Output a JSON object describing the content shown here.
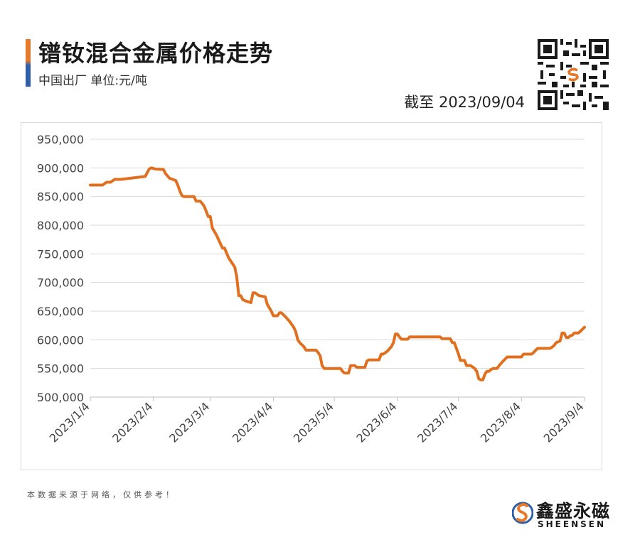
{
  "header": {
    "title": "镨钕混合金属价格走势",
    "subtitle": "中国出厂  单位:元/吨",
    "as_of": "截至 2023/09/04"
  },
  "footer": {
    "source_note": "本数据来源于网络，仅供参考！",
    "brand_cn": "鑫盛永磁",
    "brand_en": "SHEENSEN"
  },
  "colors": {
    "line": "#e07020",
    "grid": "#d9d9d9",
    "accent_orange": "#e8782a",
    "accent_blue": "#2f5fa8"
  },
  "icons": {
    "qr": "qr-code-icon",
    "logo": "sheensen-logo-icon"
  },
  "chart_data": {
    "type": "line",
    "title": "镨钕混合金属价格走势",
    "xlabel": "",
    "ylabel": "",
    "ylim": [
      500000,
      950000
    ],
    "yticks": [
      "500,000",
      "550,000",
      "600,000",
      "650,000",
      "700,000",
      "750,000",
      "800,000",
      "850,000",
      "900,000",
      "950,000"
    ],
    "xticks": [
      "2023/1/4",
      "2023/2/4",
      "2023/3/4",
      "2023/4/4",
      "2023/5/4",
      "2023/6/4",
      "2023/7/4",
      "2023/8/4",
      "2023/9/4"
    ],
    "grid": "horizontal",
    "legend": "none",
    "series": [
      {
        "points": [
          [
            "2023-01-04",
            870000
          ],
          [
            "2023-01-10",
            870000
          ],
          [
            "2023-01-12",
            875000
          ],
          [
            "2023-01-13",
            875000
          ],
          [
            "2023-01-14",
            875000
          ],
          [
            "2023-01-16",
            880000
          ],
          [
            "2023-01-19",
            880000
          ],
          [
            "2023-01-31",
            885000
          ],
          [
            "2023-02-01",
            892000
          ],
          [
            "2023-02-02",
            898000
          ],
          [
            "2023-02-03",
            900000
          ],
          [
            "2023-02-05",
            898000
          ],
          [
            "2023-02-09",
            897000
          ],
          [
            "2023-02-10",
            890000
          ],
          [
            "2023-02-12",
            882000
          ],
          [
            "2023-02-15",
            878000
          ],
          [
            "2023-02-16",
            870000
          ],
          [
            "2023-02-17",
            860000
          ],
          [
            "2023-02-18",
            852000
          ],
          [
            "2023-02-19",
            850000
          ],
          [
            "2023-02-24",
            850000
          ],
          [
            "2023-02-25",
            842000
          ],
          [
            "2023-02-27",
            842000
          ],
          [
            "2023-02-28",
            838000
          ],
          [
            "2023-03-01",
            833000
          ],
          [
            "2023-03-03",
            815000
          ],
          [
            "2023-03-04",
            815000
          ],
          [
            "2023-03-05",
            795000
          ],
          [
            "2023-03-07",
            783000
          ],
          [
            "2023-03-10",
            760000
          ],
          [
            "2023-03-11",
            760000
          ],
          [
            "2023-03-13",
            743000
          ],
          [
            "2023-03-16",
            727000
          ],
          [
            "2023-03-17",
            710000
          ],
          [
            "2023-03-18",
            677000
          ],
          [
            "2023-03-19",
            677000
          ],
          [
            "2023-03-20",
            670000
          ],
          [
            "2023-03-22",
            667000
          ],
          [
            "2023-03-24",
            665000
          ],
          [
            "2023-03-25",
            682000
          ],
          [
            "2023-03-26",
            682000
          ],
          [
            "2023-03-28",
            677000
          ],
          [
            "2023-03-31",
            675000
          ],
          [
            "2023-04-01",
            662000
          ],
          [
            "2023-04-03",
            650000
          ],
          [
            "2023-04-04",
            642000
          ],
          [
            "2023-04-06",
            642000
          ],
          [
            "2023-04-07",
            647000
          ],
          [
            "2023-04-08",
            647000
          ],
          [
            "2023-04-10",
            640000
          ],
          [
            "2023-04-12",
            632000
          ],
          [
            "2023-04-14",
            622000
          ],
          [
            "2023-04-15",
            614000
          ],
          [
            "2023-04-16",
            600000
          ],
          [
            "2023-04-17",
            595000
          ],
          [
            "2023-04-19",
            588000
          ],
          [
            "2023-04-20",
            582000
          ],
          [
            "2023-04-25",
            582000
          ],
          [
            "2023-04-26",
            578000
          ],
          [
            "2023-04-27",
            572000
          ],
          [
            "2023-04-28",
            555000
          ],
          [
            "2023-04-29",
            550000
          ],
          [
            "2023-05-07",
            550000
          ],
          [
            "2023-05-08",
            545000
          ],
          [
            "2023-05-09",
            542000
          ],
          [
            "2023-05-11",
            542000
          ],
          [
            "2023-05-12",
            555000
          ],
          [
            "2023-05-14",
            555000
          ],
          [
            "2023-05-15",
            552000
          ],
          [
            "2023-05-19",
            552000
          ],
          [
            "2023-05-20",
            563000
          ],
          [
            "2023-05-21",
            565000
          ],
          [
            "2023-05-26",
            565000
          ],
          [
            "2023-05-27",
            575000
          ],
          [
            "2023-05-28",
            575000
          ],
          [
            "2023-05-30",
            580000
          ],
          [
            "2023-06-01",
            588000
          ],
          [
            "2023-06-02",
            595000
          ],
          [
            "2023-06-03",
            610000
          ],
          [
            "2023-06-04",
            610000
          ],
          [
            "2023-06-05",
            605000
          ],
          [
            "2023-06-06",
            601000
          ],
          [
            "2023-06-09",
            601000
          ],
          [
            "2023-06-10",
            605000
          ],
          [
            "2023-06-25",
            605000
          ],
          [
            "2023-06-26",
            602000
          ],
          [
            "2023-06-30",
            602000
          ],
          [
            "2023-07-01",
            595000
          ],
          [
            "2023-07-02",
            595000
          ],
          [
            "2023-07-03",
            585000
          ],
          [
            "2023-07-04",
            575000
          ],
          [
            "2023-07-05",
            564000
          ],
          [
            "2023-07-07",
            564000
          ],
          [
            "2023-07-08",
            555000
          ],
          [
            "2023-07-10",
            555000
          ],
          [
            "2023-07-12",
            550000
          ],
          [
            "2023-07-13",
            545000
          ],
          [
            "2023-07-14",
            532000
          ],
          [
            "2023-07-15",
            530000
          ],
          [
            "2023-07-16",
            530000
          ],
          [
            "2023-07-17",
            540000
          ],
          [
            "2023-07-18",
            545000
          ],
          [
            "2023-07-19",
            545000
          ],
          [
            "2023-07-20",
            548000
          ],
          [
            "2023-07-21",
            550000
          ],
          [
            "2023-07-23",
            550000
          ],
          [
            "2023-07-24",
            555000
          ],
          [
            "2023-07-26",
            563000
          ],
          [
            "2023-07-28",
            570000
          ],
          [
            "2023-08-04",
            570000
          ],
          [
            "2023-08-05",
            575000
          ],
          [
            "2023-08-09",
            575000
          ],
          [
            "2023-08-10",
            578000
          ],
          [
            "2023-08-11",
            582000
          ],
          [
            "2023-08-12",
            585000
          ],
          [
            "2023-08-18",
            585000
          ],
          [
            "2023-08-19",
            587000
          ],
          [
            "2023-08-20",
            590000
          ],
          [
            "2023-08-21",
            595000
          ],
          [
            "2023-08-23",
            598000
          ],
          [
            "2023-08-24",
            612000
          ],
          [
            "2023-08-25",
            612000
          ],
          [
            "2023-08-26",
            604000
          ],
          [
            "2023-08-27",
            604000
          ],
          [
            "2023-08-28",
            607000
          ],
          [
            "2023-08-29",
            608000
          ],
          [
            "2023-08-30",
            612000
          ],
          [
            "2023-09-01",
            612000
          ],
          [
            "2023-09-02",
            615000
          ],
          [
            "2023-09-04",
            622000
          ]
        ]
      }
    ]
  }
}
